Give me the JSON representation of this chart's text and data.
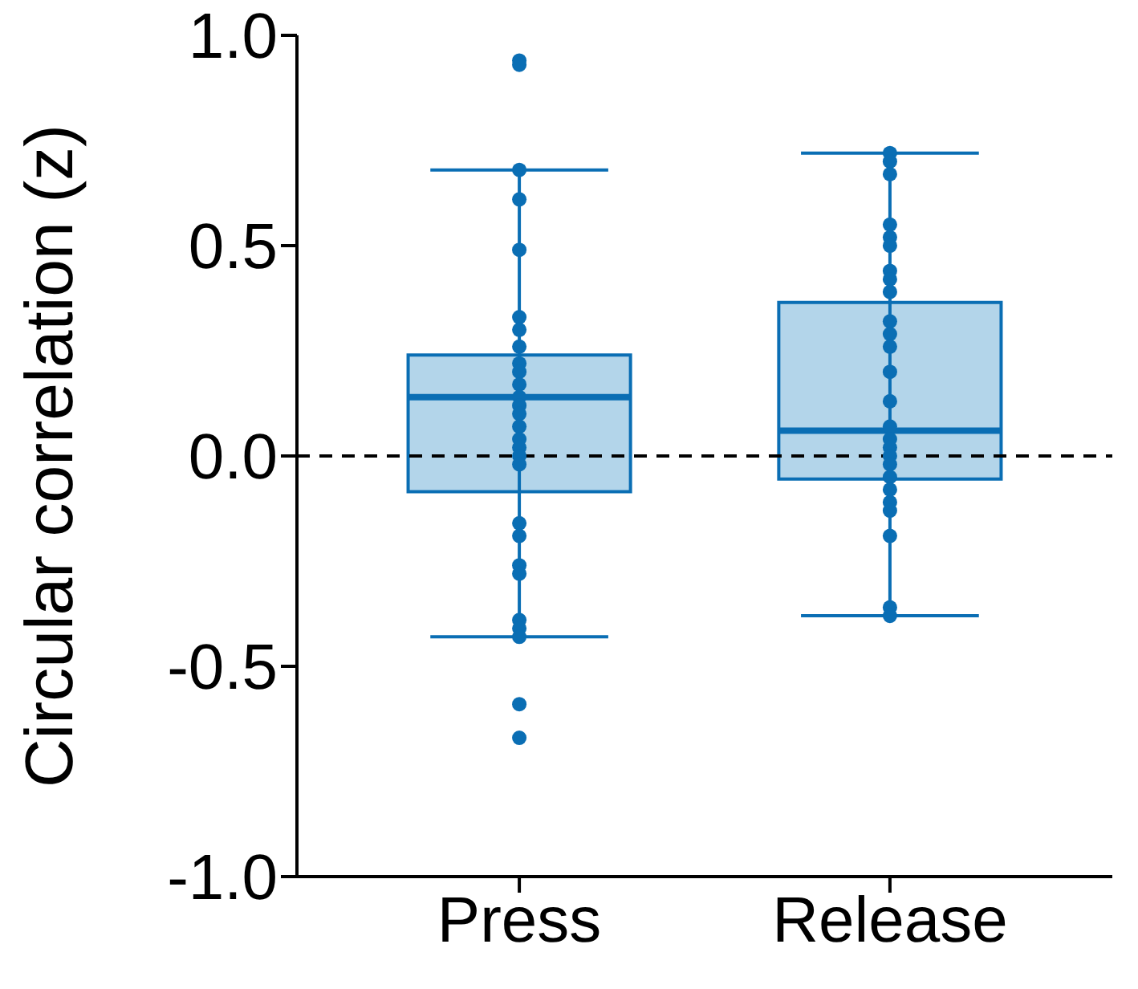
{
  "chart_data": {
    "type": "box",
    "ylabel": "Circular correlation (z)",
    "categories": [
      "Press",
      "Release"
    ],
    "ylim": [
      -1,
      1
    ],
    "yticks": [
      {
        "value": -1,
        "label": "-1.0"
      },
      {
        "value": -0.5,
        "label": "-0.5"
      },
      {
        "value": 0,
        "label": "0.0"
      },
      {
        "value": 0.5,
        "label": "0.5"
      },
      {
        "value": 1,
        "label": "1.0"
      }
    ],
    "color": "#b3d5ea",
    "boxes": [
      {
        "low": -0.43,
        "q1": -0.085,
        "median": 0.14,
        "q3": 0.24,
        "high": 0.68
      },
      {
        "low": -0.38,
        "q1": -0.055,
        "median": 0.06,
        "q3": 0.365,
        "high": 0.72
      }
    ],
    "ref_lines": [
      {
        "axis": "y",
        "value": 0,
        "color": "#000000",
        "line_style": "dashed"
      }
    ],
    "series": [
      {
        "type": "scatter",
        "color": "#0a6eb4",
        "marker": "circle",
        "x": [
          "Press",
          "Press",
          "Press",
          "Press",
          "Press",
          "Press",
          "Press",
          "Press",
          "Press",
          "Press",
          "Press",
          "Press",
          "Press",
          "Press",
          "Press",
          "Press",
          "Press",
          "Press",
          "Press",
          "Press",
          "Press",
          "Press",
          "Press",
          "Press",
          "Press",
          "Press",
          "Press",
          "Press"
        ],
        "values": [
          0.94,
          0.93,
          0.68,
          0.61,
          0.49,
          0.33,
          0.3,
          0.26,
          0.22,
          0.2,
          0.17,
          0.14,
          0.12,
          0.1,
          0.07,
          0.04,
          0.02,
          0,
          -0.02,
          -0.16,
          -0.19,
          -0.26,
          -0.28,
          -0.39,
          -0.41,
          -0.43,
          -0.59,
          -0.67
        ]
      },
      {
        "type": "scatter",
        "color": "#0a6eb4",
        "marker": "circle",
        "x": [
          "Release",
          "Release",
          "Release",
          "Release",
          "Release",
          "Release",
          "Release",
          "Release",
          "Release",
          "Release",
          "Release",
          "Release",
          "Release",
          "Release",
          "Release",
          "Release",
          "Release",
          "Release",
          "Release",
          "Release",
          "Release",
          "Release",
          "Release",
          "Release",
          "Release",
          "Release"
        ],
        "values": [
          0.72,
          0.7,
          0.67,
          0.55,
          0.52,
          0.5,
          0.44,
          0.42,
          0.39,
          0.32,
          0.29,
          0.26,
          0.2,
          0.13,
          0.07,
          0.04,
          0.02,
          0,
          -0.02,
          -0.05,
          -0.08,
          -0.11,
          -0.13,
          -0.19,
          -0.36,
          -0.38
        ]
      }
    ]
  }
}
